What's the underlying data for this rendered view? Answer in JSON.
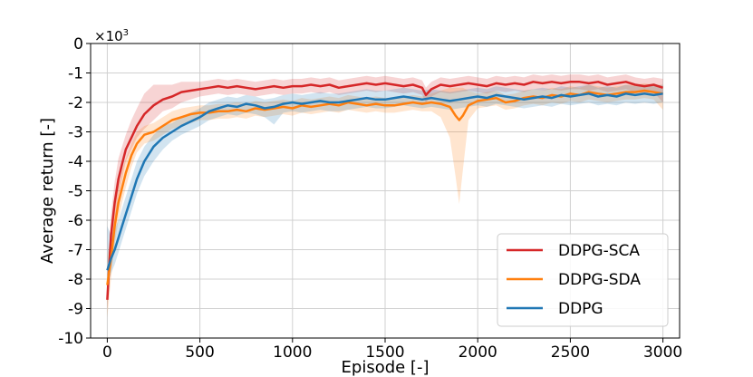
{
  "chart_data": {
    "type": "line",
    "title": "",
    "xlabel": "Episode [-]",
    "ylabel": "Average return [-]",
    "y_multiplier_base": "×10",
    "y_multiplier_exp": "3",
    "xlim": [
      -90,
      3090
    ],
    "ylim": [
      -10,
      0
    ],
    "xticks": [
      0,
      500,
      1000,
      1500,
      2000,
      2500,
      3000
    ],
    "xtick_labels": [
      "0",
      "500",
      "1000",
      "1500",
      "2000",
      "2500",
      "3000"
    ],
    "yticks": [
      0,
      -1,
      -2,
      -3,
      -4,
      -5,
      -6,
      -7,
      -8,
      -9,
      -10
    ],
    "ytick_labels": [
      "0",
      "-1",
      "-2",
      "-3",
      "-4",
      "-5",
      "-6",
      "-7",
      "-8",
      "-9",
      "-10"
    ],
    "grid": true,
    "legend_position": "bottom-right",
    "series": [
      {
        "name": "DDPG-SCA",
        "color": "#d62728",
        "x": [
          0,
          20,
          40,
          60,
          80,
          100,
          130,
          160,
          200,
          250,
          300,
          350,
          400,
          450,
          500,
          550,
          600,
          650,
          700,
          750,
          800,
          850,
          900,
          950,
          1000,
          1050,
          1100,
          1150,
          1200,
          1250,
          1300,
          1350,
          1400,
          1450,
          1500,
          1550,
          1600,
          1650,
          1700,
          1720,
          1750,
          1800,
          1850,
          1900,
          1950,
          2000,
          2050,
          2100,
          2150,
          2200,
          2250,
          2300,
          2350,
          2400,
          2450,
          2500,
          2550,
          2600,
          2650,
          2700,
          2750,
          2800,
          2850,
          2900,
          2950,
          3000
        ],
        "values": [
          -8.7,
          -6.5,
          -5.4,
          -4.6,
          -4.1,
          -3.6,
          -3.2,
          -2.8,
          -2.4,
          -2.1,
          -1.9,
          -1.8,
          -1.65,
          -1.6,
          -1.55,
          -1.5,
          -1.45,
          -1.5,
          -1.45,
          -1.5,
          -1.55,
          -1.5,
          -1.45,
          -1.5,
          -1.45,
          -1.45,
          -1.4,
          -1.45,
          -1.4,
          -1.5,
          -1.45,
          -1.4,
          -1.35,
          -1.4,
          -1.35,
          -1.4,
          -1.45,
          -1.4,
          -1.5,
          -1.75,
          -1.55,
          -1.4,
          -1.45,
          -1.4,
          -1.35,
          -1.4,
          -1.45,
          -1.35,
          -1.4,
          -1.35,
          -1.4,
          -1.3,
          -1.35,
          -1.3,
          -1.35,
          -1.3,
          -1.3,
          -1.35,
          -1.3,
          -1.4,
          -1.35,
          -1.3,
          -1.4,
          -1.45,
          -1.4,
          -1.5
        ],
        "lower": [
          -9.0,
          -7.2,
          -6.0,
          -5.2,
          -4.6,
          -4.0,
          -3.6,
          -3.2,
          -2.9,
          -2.6,
          -2.3,
          -2.2,
          -2.0,
          -1.9,
          -1.8,
          -1.75,
          -1.7,
          -1.75,
          -1.7,
          -1.75,
          -1.8,
          -1.75,
          -1.7,
          -1.75,
          -1.7,
          -1.7,
          -1.65,
          -1.7,
          -1.65,
          -1.75,
          -1.7,
          -1.65,
          -1.6,
          -1.65,
          -1.6,
          -1.65,
          -1.7,
          -1.65,
          -1.75,
          -2.0,
          -1.8,
          -1.65,
          -1.7,
          -1.65,
          -1.6,
          -1.65,
          -1.7,
          -1.6,
          -1.65,
          -1.6,
          -1.65,
          -1.55,
          -1.6,
          -1.55,
          -1.6,
          -1.55,
          -1.55,
          -1.6,
          -1.55,
          -1.65,
          -1.6,
          -1.55,
          -1.65,
          -1.7,
          -1.65,
          -2.0
        ],
        "upper": [
          -8.3,
          -5.8,
          -4.7,
          -3.9,
          -3.5,
          -3.1,
          -2.6,
          -2.2,
          -1.7,
          -1.4,
          -1.4,
          -1.4,
          -1.3,
          -1.3,
          -1.3,
          -1.25,
          -1.2,
          -1.25,
          -1.2,
          -1.25,
          -1.3,
          -1.25,
          -1.2,
          -1.25,
          -1.2,
          -1.2,
          -1.15,
          -1.2,
          -1.15,
          -1.25,
          -1.2,
          -1.15,
          -1.1,
          -1.15,
          -1.1,
          -1.15,
          -1.2,
          -1.15,
          -1.25,
          -1.5,
          -1.3,
          -1.15,
          -1.2,
          -1.15,
          -1.1,
          -1.15,
          -1.2,
          -1.1,
          -1.15,
          -1.1,
          -1.15,
          -1.05,
          -1.1,
          -1.05,
          -1.1,
          -1.05,
          -1.05,
          -1.1,
          -1.05,
          -1.15,
          -1.1,
          -1.05,
          -1.15,
          -1.2,
          -1.15,
          -1.2
        ]
      },
      {
        "name": "DDPG-SDA",
        "color": "#ff7f0e",
        "x": [
          0,
          20,
          40,
          60,
          80,
          100,
          130,
          160,
          200,
          250,
          300,
          350,
          400,
          450,
          500,
          550,
          600,
          650,
          700,
          750,
          800,
          850,
          900,
          950,
          1000,
          1050,
          1100,
          1150,
          1200,
          1250,
          1300,
          1350,
          1400,
          1450,
          1500,
          1550,
          1600,
          1650,
          1700,
          1750,
          1800,
          1850,
          1880,
          1900,
          1920,
          1950,
          2000,
          2050,
          2100,
          2150,
          2200,
          2250,
          2300,
          2350,
          2400,
          2450,
          2500,
          2550,
          2600,
          2650,
          2700,
          2750,
          2800,
          2850,
          2900,
          2950,
          3000
        ],
        "values": [
          -8.2,
          -7.3,
          -6.2,
          -5.4,
          -4.9,
          -4.4,
          -3.8,
          -3.4,
          -3.1,
          -3.0,
          -2.8,
          -2.6,
          -2.5,
          -2.4,
          -2.35,
          -2.35,
          -2.3,
          -2.3,
          -2.25,
          -2.3,
          -2.2,
          -2.25,
          -2.2,
          -2.15,
          -2.2,
          -2.1,
          -2.15,
          -2.1,
          -2.05,
          -2.1,
          -2.0,
          -2.05,
          -2.1,
          -2.05,
          -2.1,
          -2.1,
          -2.05,
          -2.0,
          -2.05,
          -2.0,
          -2.05,
          -2.15,
          -2.45,
          -2.6,
          -2.45,
          -2.1,
          -1.95,
          -1.9,
          -1.85,
          -2.0,
          -1.95,
          -1.85,
          -1.8,
          -1.85,
          -1.75,
          -1.8,
          -1.7,
          -1.75,
          -1.65,
          -1.7,
          -1.75,
          -1.7,
          -1.65,
          -1.65,
          -1.6,
          -1.65,
          -1.7
        ],
        "lower": [
          -9.3,
          -8.0,
          -6.8,
          -6.0,
          -5.4,
          -4.9,
          -4.2,
          -3.7,
          -3.4,
          -3.3,
          -3.1,
          -2.9,
          -2.8,
          -2.7,
          -2.6,
          -2.6,
          -2.55,
          -2.55,
          -2.5,
          -2.55,
          -2.45,
          -2.5,
          -2.45,
          -2.4,
          -2.45,
          -2.35,
          -2.4,
          -2.35,
          -2.3,
          -2.35,
          -2.25,
          -2.3,
          -2.35,
          -2.3,
          -2.35,
          -2.35,
          -2.3,
          -2.25,
          -2.3,
          -2.3,
          -2.5,
          -3.2,
          -4.5,
          -5.45,
          -4.3,
          -2.6,
          -2.2,
          -2.15,
          -2.1,
          -2.25,
          -2.2,
          -2.1,
          -2.05,
          -2.1,
          -2.0,
          -2.05,
          -1.95,
          -2.0,
          -1.9,
          -1.95,
          -2.0,
          -1.95,
          -1.9,
          -1.9,
          -1.85,
          -1.9,
          -2.25
        ],
        "upper": [
          -7.2,
          -6.5,
          -5.6,
          -4.8,
          -4.3,
          -3.9,
          -3.4,
          -3.0,
          -2.8,
          -2.7,
          -2.5,
          -2.3,
          -2.2,
          -2.15,
          -2.1,
          -2.1,
          -2.05,
          -2.05,
          -2.0,
          -2.05,
          -1.95,
          -2.0,
          -1.95,
          -1.9,
          -1.95,
          -1.85,
          -1.9,
          -1.85,
          -1.8,
          -1.85,
          -1.75,
          -1.8,
          -1.85,
          -1.8,
          -1.85,
          -1.85,
          -1.8,
          -1.75,
          -1.8,
          -1.7,
          -1.6,
          -1.5,
          -1.5,
          -1.5,
          -1.5,
          -1.6,
          -1.7,
          -1.65,
          -1.6,
          -1.75,
          -1.7,
          -1.6,
          -1.55,
          -1.6,
          -1.5,
          -1.55,
          -1.45,
          -1.5,
          -1.4,
          -1.45,
          -1.5,
          -1.45,
          -1.4,
          -1.4,
          -1.35,
          -1.4,
          -1.4
        ]
      },
      {
        "name": "DDPG",
        "color": "#1f77b4",
        "x": [
          0,
          20,
          40,
          60,
          80,
          100,
          130,
          160,
          200,
          250,
          300,
          350,
          400,
          450,
          500,
          550,
          600,
          650,
          700,
          750,
          800,
          850,
          900,
          950,
          1000,
          1050,
          1100,
          1150,
          1200,
          1250,
          1300,
          1350,
          1400,
          1450,
          1500,
          1550,
          1600,
          1650,
          1700,
          1750,
          1800,
          1850,
          1900,
          1950,
          2000,
          2050,
          2100,
          2150,
          2200,
          2250,
          2300,
          2350,
          2400,
          2450,
          2500,
          2550,
          2600,
          2650,
          2700,
          2750,
          2800,
          2850,
          2900,
          2950,
          3000
        ],
        "values": [
          -7.7,
          -7.3,
          -7.0,
          -6.6,
          -6.2,
          -5.8,
          -5.2,
          -4.6,
          -4.0,
          -3.5,
          -3.2,
          -3.0,
          -2.8,
          -2.65,
          -2.5,
          -2.3,
          -2.2,
          -2.1,
          -2.15,
          -2.05,
          -2.1,
          -2.2,
          -2.15,
          -2.05,
          -2.0,
          -2.05,
          -2.0,
          -1.95,
          -2.0,
          -2.0,
          -1.95,
          -1.9,
          -1.85,
          -1.9,
          -1.9,
          -1.85,
          -1.8,
          -1.85,
          -1.9,
          -1.85,
          -1.9,
          -1.95,
          -1.9,
          -1.85,
          -1.8,
          -1.85,
          -1.75,
          -1.8,
          -1.85,
          -1.9,
          -1.85,
          -1.8,
          -1.85,
          -1.75,
          -1.8,
          -1.75,
          -1.7,
          -1.8,
          -1.75,
          -1.8,
          -1.7,
          -1.75,
          -1.7,
          -1.75,
          -1.7
        ],
        "lower": [
          -8.3,
          -7.8,
          -7.5,
          -7.1,
          -6.7,
          -6.3,
          -5.7,
          -5.1,
          -4.5,
          -4.0,
          -3.6,
          -3.3,
          -3.1,
          -2.95,
          -2.8,
          -2.6,
          -2.5,
          -2.4,
          -2.45,
          -2.35,
          -2.4,
          -2.5,
          -2.75,
          -2.35,
          -2.3,
          -2.35,
          -2.3,
          -2.25,
          -2.3,
          -2.3,
          -2.25,
          -2.2,
          -2.15,
          -2.2,
          -2.2,
          -2.15,
          -2.1,
          -2.15,
          -2.2,
          -2.15,
          -2.2,
          -2.25,
          -2.2,
          -2.15,
          -2.1,
          -2.15,
          -2.05,
          -2.1,
          -2.15,
          -2.2,
          -2.15,
          -2.1,
          -2.15,
          -2.05,
          -2.1,
          -2.05,
          -2.0,
          -2.1,
          -2.05,
          -2.1,
          -2.0,
          -2.05,
          -2.0,
          -2.05,
          -2.0
        ],
        "upper": [
          -6.2,
          -6.5,
          -6.3,
          -6.0,
          -5.6,
          -5.2,
          -4.6,
          -4.0,
          -3.5,
          -3.1,
          -2.8,
          -2.7,
          -2.5,
          -2.35,
          -2.2,
          -2.0,
          -1.9,
          -1.8,
          -1.85,
          -1.75,
          -1.8,
          -1.9,
          -1.85,
          -1.75,
          -1.7,
          -1.75,
          -1.7,
          -1.65,
          -1.7,
          -1.7,
          -1.65,
          -1.6,
          -1.55,
          -1.6,
          -1.6,
          -1.55,
          -1.5,
          -1.55,
          -1.6,
          -1.55,
          -1.6,
          -1.65,
          -1.6,
          -1.55,
          -1.5,
          -1.55,
          -1.45,
          -1.5,
          -1.55,
          -1.6,
          -1.55,
          -1.5,
          -1.55,
          -1.45,
          -1.5,
          -1.45,
          -1.4,
          -1.5,
          -1.45,
          -1.5,
          -1.4,
          -1.45,
          -1.4,
          -1.45,
          -1.4
        ]
      }
    ]
  }
}
